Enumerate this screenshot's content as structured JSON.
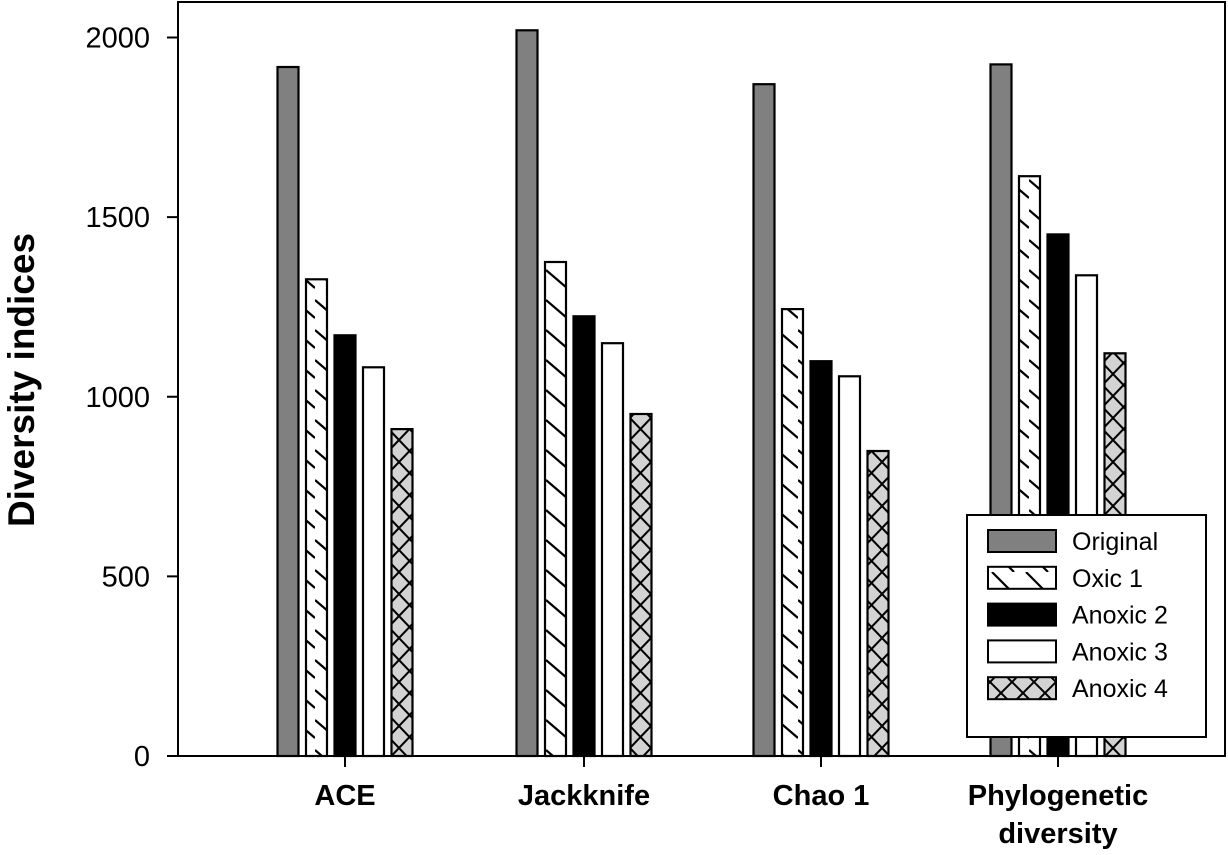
{
  "chart_data": {
    "type": "bar",
    "title": "",
    "xlabel": "",
    "ylabel": "Diversity indices",
    "ylim": [
      0,
      2000
    ],
    "yticks": [
      0,
      500,
      1000,
      1500,
      2000
    ],
    "grid": false,
    "legend_position": "bottom-right",
    "categories": [
      {
        "lines": [
          "ACE"
        ]
      },
      {
        "lines": [
          "Jackknife"
        ]
      },
      {
        "lines": [
          "Chao 1"
        ]
      },
      {
        "lines": [
          "Phylogenetic",
          "diversity"
        ]
      }
    ],
    "series": [
      {
        "name": "Original",
        "pattern": "solid",
        "fill": "#808080",
        "values": [
          1918,
          2020,
          1870,
          1925
        ]
      },
      {
        "name": "Oxic 1",
        "pattern": "diagonal",
        "fill": "#ffffff",
        "values": [
          1327,
          1375,
          1244,
          1614
        ]
      },
      {
        "name": "Anoxic 2",
        "pattern": "solid",
        "fill": "#000000",
        "values": [
          1171,
          1224,
          1099,
          1452
        ]
      },
      {
        "name": "Anoxic 3",
        "pattern": "solid",
        "fill": "#ffffff",
        "values": [
          1082,
          1149,
          1057,
          1338
        ]
      },
      {
        "name": "Anoxic 4",
        "pattern": "crosshatch",
        "fill": "#d3d3d3",
        "values": [
          910,
          952,
          849,
          1121
        ]
      }
    ]
  }
}
